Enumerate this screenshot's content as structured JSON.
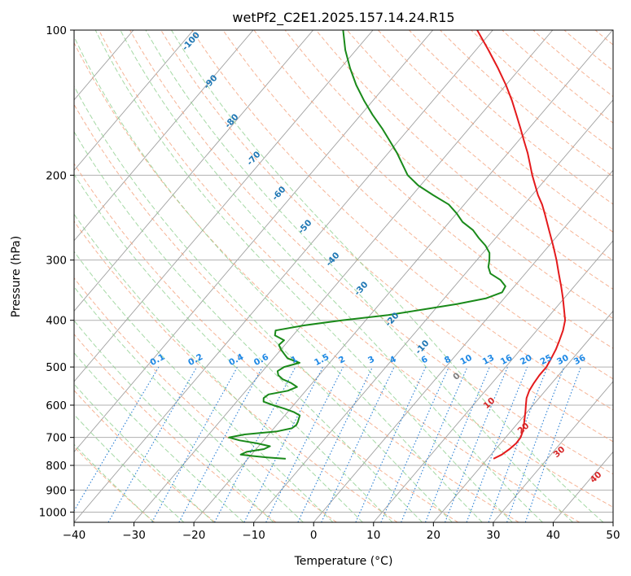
{
  "title": "wetPf2_C2E1.2025.157.14.24.R15",
  "xlabel": "Temperature (°C)",
  "ylabel": "Pressure (hPa)",
  "colors": {
    "temperature": "#e41a1c",
    "dewpoint": "#1a8a1a",
    "isotherm": "#a0a0a0",
    "dry_adiabat": "#f4a07a",
    "moist_adiabat": "#8fcf8f",
    "mixing_ratio": "#2a7fd4",
    "dry_label": "#1f77b4",
    "moist_label": "#d62728",
    "mix_label": "#1e88e5"
  },
  "chart_data": {
    "type": "line",
    "plot_kind": "skew-T log-P diagram",
    "title": "wetPf2_C2E1.2025.157.14.24.R15",
    "xlabel": "Temperature (°C)",
    "ylabel": "Pressure (hPa)",
    "xlim": [
      -40,
      50
    ],
    "ylim": [
      1050,
      100
    ],
    "y_scale": "log",
    "xticks": [
      -40,
      -30,
      -20,
      -10,
      0,
      10,
      20,
      30,
      40,
      50
    ],
    "yticks": [
      100,
      200,
      300,
      400,
      500,
      600,
      700,
      800,
      900,
      1000
    ],
    "grid": true,
    "series": [
      {
        "key": "temperature",
        "pressure": [
          775,
          760,
          740,
          720,
          700,
          680,
          660,
          640,
          620,
          600,
          580,
          560,
          540,
          520,
          500,
          480,
          460,
          440,
          420,
          400,
          380,
          360,
          340,
          320,
          300,
          280,
          260,
          240,
          230,
          220,
          200,
          190,
          180,
          170,
          160,
          150,
          140,
          130,
          120,
          110,
          100
        ],
        "temperature_c": [
          21.0,
          21.8,
          22.3,
          22.6,
          22.5,
          22.0,
          21.3,
          20.5,
          19.7,
          18.8,
          17.9,
          17.3,
          17.0,
          16.8,
          16.8,
          16.4,
          15.9,
          15.2,
          14.4,
          13.3,
          11.6,
          9.8,
          7.8,
          5.6,
          3.3,
          0.7,
          -2.2,
          -5.3,
          -7.0,
          -9.0,
          -12.8,
          -14.7,
          -16.7,
          -19.0,
          -21.4,
          -24.0,
          -26.8,
          -30.0,
          -33.7,
          -37.9,
          -42.6
        ]
      },
      {
        "key": "dewpoint",
        "pressure": [
          775,
          770,
          765,
          760,
          750,
          740,
          730,
          720,
          710,
          700,
          690,
          680,
          670,
          660,
          650,
          640,
          630,
          620,
          610,
          600,
          590,
          580,
          570,
          560,
          550,
          540,
          530,
          520,
          510,
          500,
          490,
          480,
          470,
          460,
          450,
          440,
          430,
          420,
          410,
          400,
          390,
          380,
          370,
          360,
          350,
          340,
          330,
          320,
          310,
          300,
          290,
          280,
          270,
          260,
          250,
          240,
          230,
          220,
          210,
          200,
          190,
          180,
          170,
          160,
          150,
          140,
          130,
          120,
          110,
          100
        ],
        "temperature_c": [
          -13.7,
          -17.0,
          -19.6,
          -21.8,
          -21.2,
          -18.7,
          -18.1,
          -20.7,
          -24.0,
          -26.2,
          -24.0,
          -19.0,
          -17.0,
          -16.7,
          -16.9,
          -17.2,
          -17.5,
          -19.0,
          -21.0,
          -23.4,
          -25.5,
          -26.0,
          -25.7,
          -23.0,
          -22.0,
          -23.5,
          -25.5,
          -26.8,
          -27.5,
          -27.0,
          -25.0,
          -27.6,
          -28.8,
          -30.0,
          -31.0,
          -30.8,
          -33.0,
          -33.6,
          -29.6,
          -24.0,
          -17.0,
          -12.0,
          -7.0,
          -3.0,
          -1.2,
          -1.5,
          -3.2,
          -5.8,
          -7.1,
          -7.9,
          -8.9,
          -10.6,
          -12.8,
          -14.9,
          -17.8,
          -20.0,
          -22.6,
          -26.5,
          -30.4,
          -33.6,
          -36.0,
          -38.5,
          -41.4,
          -44.5,
          -48.0,
          -51.5,
          -55.0,
          -58.4,
          -61.8,
          -65.0
        ]
      }
    ],
    "dry_adiabat_labels": [
      "-100",
      "-90",
      "-80",
      "-70",
      "-60",
      "-50",
      "-40",
      "-30",
      "-20",
      "-10"
    ],
    "moist_adiabat_labels": [
      "0",
      "10",
      "20",
      "30",
      "40"
    ],
    "mixing_ratio_labels": [
      "0.1",
      "0.2",
      "0.4",
      "0.6",
      "1",
      "1.5",
      "2",
      "3",
      "4",
      "6",
      "8",
      "10",
      "13",
      "16",
      "20",
      "25",
      "30",
      "36"
    ]
  }
}
